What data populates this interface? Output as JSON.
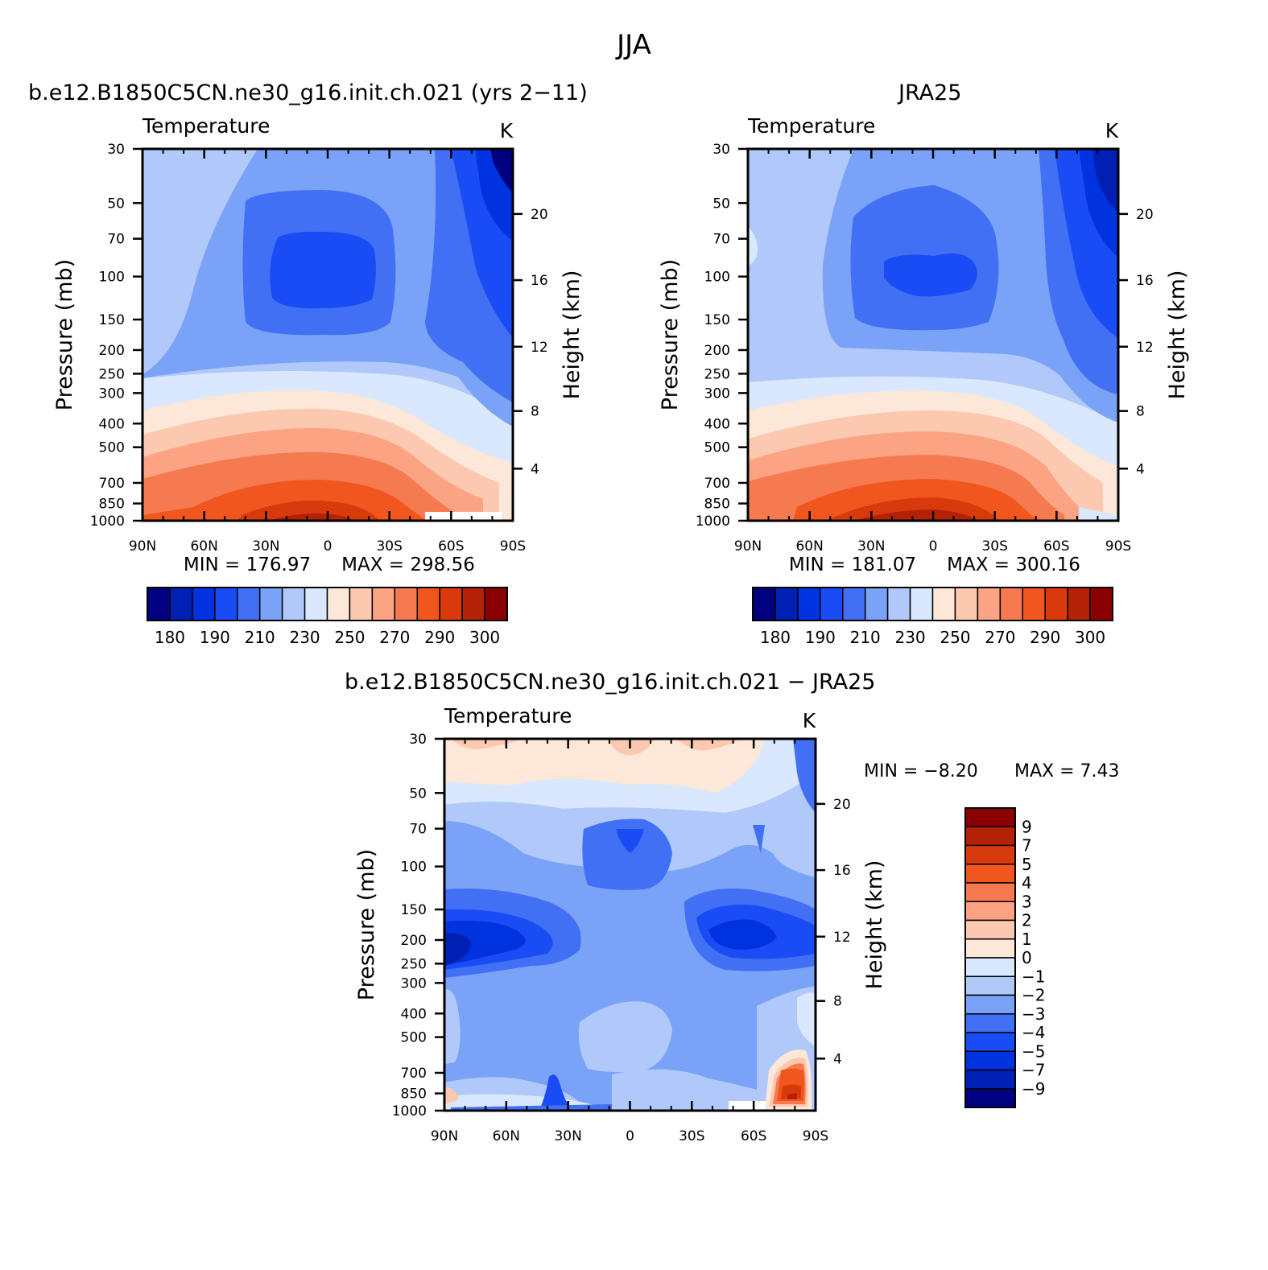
{
  "figure_title": "JJA",
  "colors": {
    "abs_levels": [
      "#000080",
      "#0020b4",
      "#0033e0",
      "#1a4cf5",
      "#4170f5",
      "#7aa2f7",
      "#b0c9fa",
      "#d9e8fc",
      "#fde7d9",
      "#fcc8b0",
      "#fba383",
      "#f67a50",
      "#f2561f",
      "#d93a0c",
      "#b32206",
      "#8b0000"
    ],
    "diff_levels": [
      "#000080",
      "#0020b4",
      "#0033e0",
      "#1a4cf5",
      "#4170f5",
      "#7aa2f7",
      "#b0c9fa",
      "#d9e8fc",
      "#fde7d9",
      "#fcc8b0",
      "#fba383",
      "#f67a50",
      "#f2561f",
      "#d93a0c",
      "#b32206",
      "#8b0000"
    ]
  },
  "chart_data": [
    {
      "type": "heatmap",
      "panel_title": "b.e12.B1850C5CN.ne30_g16.init.ch.021 (yrs 2−11)",
      "left_label": "Temperature",
      "units": "K",
      "ylabel": "Pressure (mb)",
      "y2label": "Height (km)",
      "x_ticks": [
        "90N",
        "60N",
        "30N",
        "0",
        "30S",
        "60S",
        "90S"
      ],
      "y_ticks": [
        "30",
        "50",
        "70",
        "100",
        "150",
        "200",
        "250",
        "300",
        "400",
        "500",
        "700",
        "850",
        "1000"
      ],
      "y2_ticks": [
        "20",
        "16",
        "12",
        "8",
        "4"
      ],
      "min_label": "MIN = 176.97",
      "max_label": "MAX = 298.56",
      "colorbar_ticks": [
        "180",
        "190",
        "210",
        "230",
        "250",
        "270",
        "290",
        "300"
      ]
    },
    {
      "type": "heatmap",
      "panel_title": "JRA25",
      "left_label": "Temperature",
      "units": "K",
      "ylabel": "Pressure (mb)",
      "y2label": "Height (km)",
      "x_ticks": [
        "90N",
        "60N",
        "30N",
        "0",
        "30S",
        "60S",
        "90S"
      ],
      "y_ticks": [
        "30",
        "50",
        "70",
        "100",
        "150",
        "200",
        "250",
        "300",
        "400",
        "500",
        "700",
        "850",
        "1000"
      ],
      "y2_ticks": [
        "20",
        "16",
        "12",
        "8",
        "4"
      ],
      "min_label": "MIN = 181.07",
      "max_label": "MAX = 300.16",
      "colorbar_ticks": [
        "180",
        "190",
        "210",
        "230",
        "250",
        "270",
        "290",
        "300"
      ]
    },
    {
      "type": "heatmap",
      "panel_title": "b.e12.B1850C5CN.ne30_g16.init.ch.021 − JRA25",
      "left_label": "Temperature",
      "units": "K",
      "ylabel": "Pressure (mb)",
      "y2label": "Height (km)",
      "x_ticks": [
        "90N",
        "60N",
        "30N",
        "0",
        "30S",
        "60S",
        "90S"
      ],
      "y_ticks": [
        "30",
        "50",
        "70",
        "100",
        "150",
        "200",
        "250",
        "300",
        "400",
        "500",
        "700",
        "850",
        "1000"
      ],
      "y2_ticks": [
        "20",
        "16",
        "12",
        "8",
        "4"
      ],
      "min_label": "MIN = −8.20",
      "max_label": "MAX = 7.43",
      "colorbar_ticks": [
        "9",
        "7",
        "5",
        "4",
        "3",
        "2",
        "1",
        "0",
        "−1",
        "−2",
        "−3",
        "−4",
        "−5",
        "−7",
        "−9"
      ]
    }
  ]
}
